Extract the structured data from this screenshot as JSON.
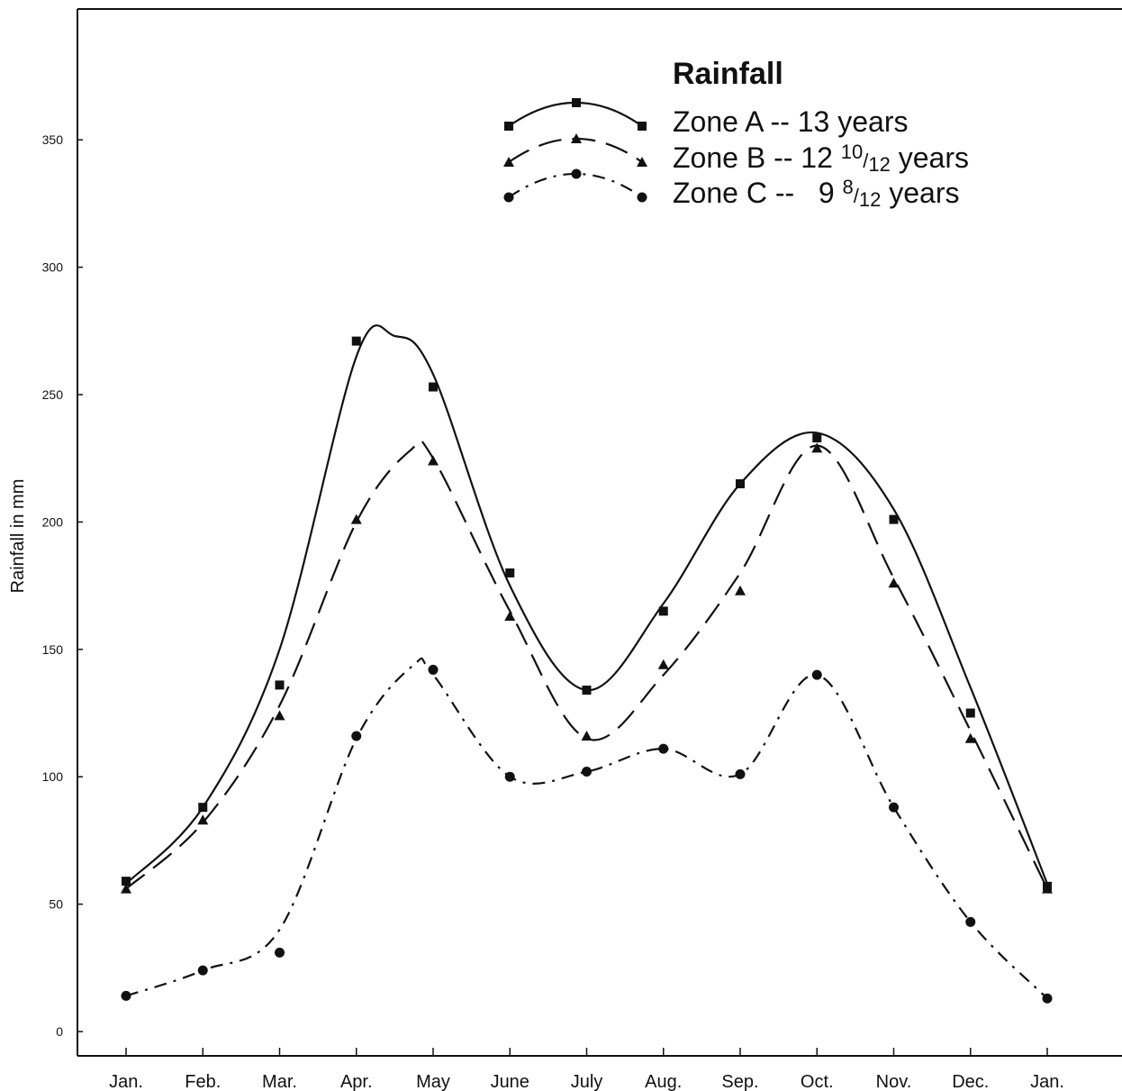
{
  "chart_data": {
    "type": "line",
    "title": "Rainfall",
    "xlabel": "",
    "ylabel": "Rainfall in mm",
    "categories": [
      "Jan.",
      "Feb.",
      "Mar.",
      "Apr.",
      "May",
      "June",
      "July",
      "Aug.",
      "Sep.",
      "Oct.",
      "Nov.",
      "Dec.",
      "Jan."
    ],
    "yticks": [
      0,
      50,
      100,
      150,
      200,
      250,
      300,
      350
    ],
    "ylim": [
      0,
      400
    ],
    "grid": false,
    "legend_position": "top-right",
    "series": [
      {
        "name": "Zone A",
        "legend_main": "Zone A -- 13 years",
        "legend_prefix": "Zone A -- 13 years",
        "legend_sup": "",
        "legend_sub": "",
        "legend_suffix": "",
        "marker": "square",
        "line_style": "solid",
        "values": [
          59,
          88,
          136,
          271,
          253,
          180,
          134,
          165,
          215,
          233,
          201,
          125,
          57
        ],
        "curve": [
          [
            0,
            58
          ],
          [
            1,
            88
          ],
          [
            2,
            150
          ],
          [
            3,
            265
          ],
          [
            3.5,
            273
          ],
          [
            4,
            258
          ],
          [
            5,
            175
          ],
          [
            6,
            134
          ],
          [
            7,
            168
          ],
          [
            8,
            215
          ],
          [
            9,
            235
          ],
          [
            10,
            205
          ],
          [
            11,
            135
          ],
          [
            12,
            58
          ]
        ]
      },
      {
        "name": "Zone B",
        "legend_main": "Zone B -- 12 10/12 years",
        "legend_prefix": "Zone B -- 12 ",
        "legend_sup": "10",
        "legend_sub": "12",
        "legend_suffix": " years",
        "marker": "triangle",
        "line_style": "dashed",
        "values": [
          56,
          83,
          124,
          201,
          224,
          163,
          116,
          144,
          173,
          229,
          176,
          115,
          56
        ],
        "curve": [
          [
            0,
            56
          ],
          [
            1,
            82
          ],
          [
            2,
            128
          ],
          [
            3,
            200
          ],
          [
            3.7,
            228
          ],
          [
            4,
            225
          ],
          [
            5,
            165
          ],
          [
            6,
            115
          ],
          [
            7,
            140
          ],
          [
            8,
            180
          ],
          [
            9,
            230
          ],
          [
            10,
            178
          ],
          [
            11,
            118
          ],
          [
            12,
            56
          ]
        ]
      },
      {
        "name": "Zone C",
        "legend_main": "Zone C -- 9 8/12 years",
        "legend_prefix": "Zone C --   9 ",
        "legend_sup": "8",
        "legend_sub": "12",
        "legend_suffix": " years",
        "marker": "circle",
        "line_style": "dashdot",
        "values": [
          14,
          24,
          31,
          116,
          142,
          100,
          102,
          111,
          101,
          140,
          88,
          43,
          13
        ],
        "curve": [
          [
            0,
            14
          ],
          [
            1,
            24
          ],
          [
            2,
            40
          ],
          [
            3,
            115
          ],
          [
            3.75,
            144
          ],
          [
            4,
            140
          ],
          [
            5,
            100
          ],
          [
            6,
            102
          ],
          [
            7,
            111
          ],
          [
            8,
            101
          ],
          [
            9,
            140
          ],
          [
            10,
            88
          ],
          [
            11,
            43
          ],
          [
            12,
            13
          ]
        ]
      }
    ]
  }
}
